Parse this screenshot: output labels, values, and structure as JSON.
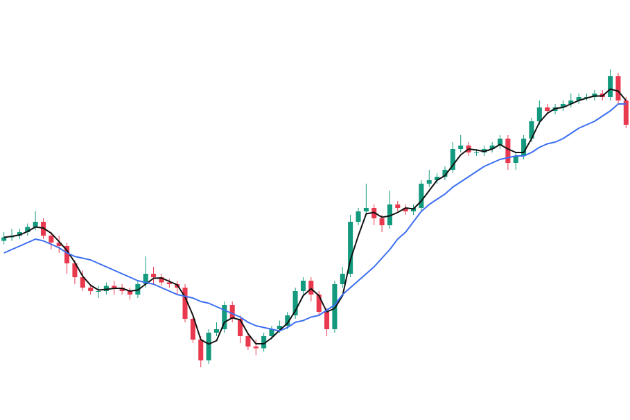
{
  "chart_data": {
    "type": "candlestick",
    "ylim": [
      0,
      120
    ],
    "up_color": "#13997d",
    "down_color": "#e8394f",
    "open": [
      50.5,
      51.5,
      52,
      53,
      54.5,
      56,
      52,
      50,
      49,
      44,
      40,
      37,
      36,
      36,
      37.5,
      37,
      36,
      35,
      38,
      41,
      40,
      38.5,
      38,
      37,
      28,
      22,
      16,
      24,
      25,
      32,
      28,
      23,
      20,
      19.5,
      23,
      25,
      26,
      29,
      36,
      39,
      35,
      30,
      25,
      38,
      41,
      56,
      59,
      60,
      57,
      55,
      61,
      60,
      59,
      60,
      67,
      68,
      69,
      71,
      77,
      78,
      76,
      76,
      77,
      78,
      80,
      73,
      75,
      80,
      85,
      89,
      88,
      89,
      90,
      91,
      92,
      92,
      93,
      92,
      98,
      91
    ],
    "high": [
      53,
      54,
      54,
      55.5,
      59,
      57,
      53,
      52,
      50,
      45,
      42,
      38,
      37.5,
      38.5,
      39,
      38,
      37,
      39,
      46,
      43,
      41,
      39.5,
      39,
      38,
      29,
      23,
      25,
      27,
      33,
      33,
      29,
      24,
      22,
      24,
      26,
      27.5,
      30,
      37,
      40,
      40,
      36,
      31,
      39,
      43,
      58,
      60,
      67,
      61,
      58,
      65,
      62,
      61,
      61,
      68,
      71,
      70,
      72,
      79,
      81,
      79,
      77,
      78,
      79,
      81,
      81,
      76,
      81,
      86,
      91,
      90,
      90,
      91,
      93,
      93,
      93,
      94,
      94,
      100,
      99,
      92
    ],
    "low": [
      49.5,
      50.5,
      51,
      52,
      53.5,
      51,
      48,
      47,
      41,
      38,
      36,
      35,
      34,
      35,
      35,
      35,
      33.5,
      34,
      37,
      38,
      37.5,
      37,
      35,
      27,
      21,
      14,
      15,
      23,
      24,
      27,
      21,
      19,
      17.5,
      18.5,
      22,
      24,
      25,
      28,
      35,
      33,
      29,
      23,
      24,
      37,
      40,
      55,
      58,
      55,
      53,
      54,
      59,
      58,
      58,
      59,
      66,
      67,
      68,
      70,
      76,
      75,
      75,
      75,
      76,
      77,
      71,
      71,
      74,
      79,
      84,
      87,
      87,
      88,
      89,
      90,
      91,
      91,
      91,
      91,
      90,
      83
    ],
    "close": [
      51.5,
      52,
      53,
      54.5,
      56,
      52,
      50,
      49,
      44,
      40,
      37,
      36,
      36,
      37.5,
      37,
      36,
      35,
      38,
      41,
      40,
      38.5,
      38,
      37,
      28,
      22,
      16,
      24,
      25,
      32,
      28,
      23,
      20,
      19.5,
      23,
      25,
      26,
      29,
      36,
      39,
      35,
      30,
      25,
      38,
      41,
      56,
      59,
      60,
      57,
      55,
      61,
      60,
      59,
      60,
      67,
      68,
      69,
      71,
      77,
      78,
      76,
      76,
      77,
      78,
      80,
      73,
      75,
      80,
      85,
      89,
      88,
      89,
      90,
      91,
      92,
      92,
      93,
      92,
      98,
      91,
      84
    ],
    "series": [
      {
        "color": "#111111",
        "values": [
          51.5,
          51.8,
          52.2,
          53.2,
          54.5,
          54.2,
          52.7,
          50.3,
          47.7,
          44.3,
          40.3,
          37.7,
          36.3,
          36.5,
          36.8,
          36.8,
          36,
          36.3,
          38,
          39.7,
          39.8,
          38.8,
          37.8,
          34.3,
          29,
          22,
          20.7,
          21.7,
          27,
          28.3,
          27.7,
          23.7,
          20.8,
          20.8,
          22.5,
          24.7,
          26.7,
          30.3,
          34.7,
          36.7,
          34.7,
          30,
          31,
          34.7,
          45,
          52,
          58.3,
          58.7,
          57.3,
          57.7,
          58.7,
          60,
          59.7,
          62,
          65,
          68,
          69.3,
          72.3,
          75.3,
          77,
          76.7,
          76.3,
          77,
          78.3,
          77,
          76,
          76,
          80,
          84.7,
          87.3,
          88.7,
          89,
          90,
          91,
          91.7,
          92.3,
          92.3,
          94.3,
          93.7,
          91
        ]
      },
      {
        "color": "#3b6ef0",
        "values": [
          47,
          48,
          49,
          50,
          51,
          50.5,
          49.5,
          48.5,
          47,
          46,
          45.5,
          45,
          44,
          43,
          42,
          41,
          40,
          39,
          38.5,
          38,
          37,
          36,
          35,
          34.5,
          34,
          33,
          32.5,
          31.5,
          30.5,
          29.5,
          28.5,
          27,
          26,
          25.5,
          25,
          24.5,
          25.5,
          27,
          27.5,
          28.5,
          29,
          30.5,
          32,
          35,
          37,
          39,
          41,
          43,
          45.5,
          48,
          51,
          53,
          56,
          59,
          61,
          62.5,
          64,
          66,
          67.5,
          69,
          70.5,
          72,
          73,
          74,
          74.5,
          75,
          75,
          76,
          77.5,
          78.5,
          79,
          80,
          81.5,
          83,
          84,
          85,
          86.5,
          88,
          90,
          90
        ]
      }
    ]
  }
}
